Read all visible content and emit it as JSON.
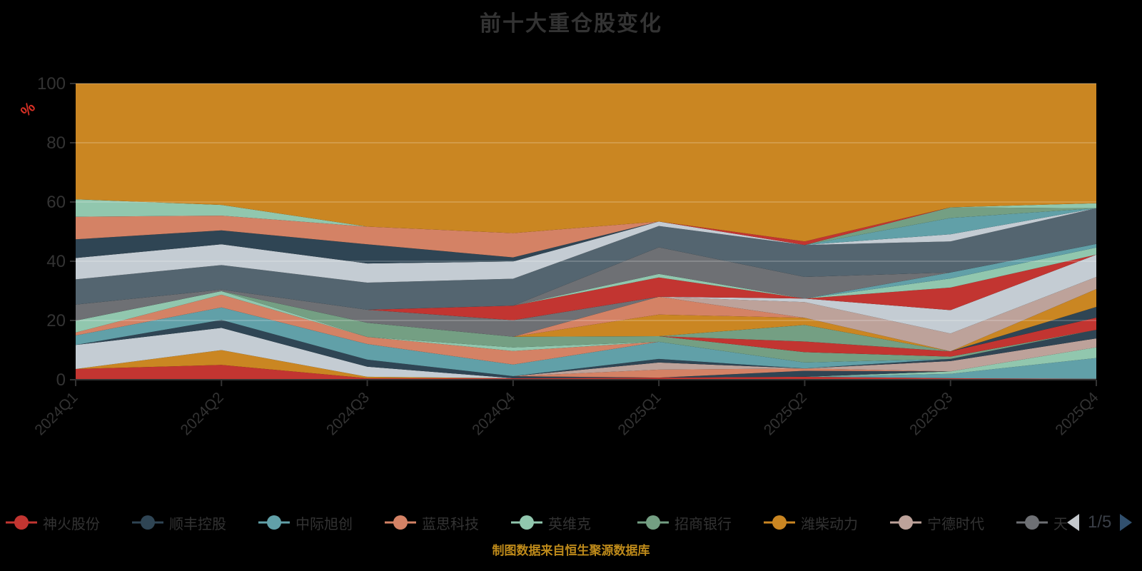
{
  "header": {
    "title": "前十大重仓股变化"
  },
  "footer": {
    "source_note": "制图数据来自恒生聚源数据库"
  },
  "legend": {
    "items": [
      {
        "label": "神火股份",
        "color": "#c23531"
      },
      {
        "label": "顺丰控股",
        "color": "#2f4554"
      },
      {
        "label": "中际旭创",
        "color": "#61a0a8"
      },
      {
        "label": "蓝思科技",
        "color": "#d48265"
      },
      {
        "label": "英维克",
        "color": "#91c7ae"
      },
      {
        "label": "招商银行",
        "color": "#749f83"
      },
      {
        "label": "潍柴动力",
        "color": "#ca8622"
      },
      {
        "label": "宁德时代",
        "color": "#bda29a"
      },
      {
        "label": "天",
        "color": "#6e7074",
        "clipped": true
      }
    ],
    "pager": {
      "label": "1/5",
      "prev_color": "#c4c8cc",
      "next_color": "#31506e"
    }
  },
  "chart_data": {
    "type": "area",
    "stacked": true,
    "normalized_percent": true,
    "title": "前十大重仓股变化",
    "x_categories": [
      "2024Q1",
      "2024Q2",
      "2024Q3",
      "2024Q4",
      "2025Q1",
      "2025Q2",
      "2025Q3",
      "2025Q4"
    ],
    "ylabel": "%",
    "ylabel_color": "#d93025",
    "ylim": [
      0,
      100
    ],
    "y_ticks": [
      0,
      20,
      40,
      60,
      80,
      100
    ],
    "grid": true,
    "gridline_color": "rgba(255,255,255,0.35)",
    "axis_color": "#333333",
    "tick_label_color": "#333333",
    "legend_position": "bottom",
    "palette": [
      "#c23531",
      "#2f4554",
      "#61a0a8",
      "#d48265",
      "#91c7ae",
      "#749f83",
      "#ca8622",
      "#bda29a",
      "#6e7074",
      "#546570",
      "#c4ccd3"
    ],
    "note": "45 holdings cycle through the 11-color palette; legend shows page 1/5. Values are % of portfolio, stacked bottom-to-top, estimated from pixels.",
    "series": [
      {
        "name": "神火股份",
        "color": "#c23531",
        "values": [
          3.6,
          5.0,
          0.5,
          0.5,
          0.7,
          1.0,
          0.5,
          0.3
        ]
      },
      {
        "name": "",
        "color": "#ca8622",
        "values": [
          0,
          5.0,
          0.5,
          0,
          0,
          0,
          0,
          0
        ]
      },
      {
        "name": "",
        "color": "#61a0a8",
        "values": [
          0,
          0,
          0,
          0,
          0,
          0,
          1.5,
          7.0
        ]
      },
      {
        "name": "",
        "color": "#91c7ae",
        "values": [
          0,
          0,
          0,
          0,
          0,
          0,
          0.8,
          3.6
        ]
      },
      {
        "name": "",
        "color": "#c4ccd3",
        "values": [
          8.1,
          7.5,
          3.4,
          0,
          0,
          0,
          0,
          0
        ]
      },
      {
        "name": "",
        "color": "#2f4554",
        "values": [
          0,
          2.7,
          2.4,
          0.7,
          0,
          2.0,
          0,
          0
        ]
      },
      {
        "name": "",
        "color": "#d48265",
        "values": [
          0,
          0,
          0,
          0,
          2.7,
          0.8,
          0,
          0
        ]
      },
      {
        "name": "",
        "color": "#bda29a",
        "values": [
          0,
          0,
          0,
          0,
          2.4,
          0,
          3.5,
          3.0
        ]
      },
      {
        "name": "",
        "color": "#2f4554",
        "values": [
          0,
          0,
          0,
          0,
          1.2,
          0,
          0.7,
          2.9
        ]
      },
      {
        "name": "",
        "color": "#61a0a8",
        "values": [
          3.2,
          4.2,
          5.3,
          3.9,
          5.8,
          2.0,
          0,
          0
        ]
      },
      {
        "name": "",
        "color": "#d48265",
        "values": [
          1.0,
          4.3,
          2.4,
          4.6,
          0,
          0,
          0,
          0
        ]
      },
      {
        "name": "",
        "color": "#91c7ae",
        "values": [
          4.0,
          1.2,
          0,
          1.2,
          0,
          0,
          0,
          0
        ]
      },
      {
        "name": "",
        "color": "#749f83",
        "values": [
          0,
          0,
          4.8,
          3.6,
          1.9,
          3.5,
          0.8,
          0
        ]
      },
      {
        "name": "",
        "color": "#c23531",
        "values": [
          0,
          0,
          0,
          0,
          0,
          3.6,
          1.8,
          4.1
        ]
      },
      {
        "name": "",
        "color": "#2f4554",
        "values": [
          0,
          0,
          0,
          0,
          0,
          0,
          0,
          3.6
        ]
      },
      {
        "name": "",
        "color": "#749f83",
        "values": [
          0,
          0,
          0,
          0,
          0,
          5.6,
          0,
          0
        ]
      },
      {
        "name": "",
        "color": "#ca8622",
        "values": [
          0,
          0,
          0,
          0,
          7.3,
          2.4,
          0,
          6.0
        ]
      },
      {
        "name": "",
        "color": "#d48265",
        "values": [
          0,
          0,
          0,
          0,
          6.0,
          0,
          0,
          0
        ]
      },
      {
        "name": "",
        "color": "#bda29a",
        "values": [
          0,
          0,
          0,
          0,
          0,
          5.3,
          6.0,
          4.1
        ]
      },
      {
        "name": "",
        "color": "#6e7074",
        "values": [
          5.4,
          0.5,
          4.4,
          5.6,
          0,
          0,
          0,
          0
        ]
      },
      {
        "name": "",
        "color": "#c4ccd3",
        "values": [
          0,
          0,
          0,
          0,
          0,
          1.2,
          7.9,
          7.5
        ]
      },
      {
        "name": "",
        "color": "#c23531",
        "values": [
          0,
          0,
          0,
          4.9,
          6.5,
          0,
          7.6,
          0
        ]
      },
      {
        "name": "",
        "color": "#91c7ae",
        "values": [
          0,
          0,
          0,
          0,
          1.2,
          0,
          3.1,
          2.4
        ]
      },
      {
        "name": "",
        "color": "#61a0a8",
        "values": [
          0,
          0,
          0,
          0,
          0,
          0,
          2.0,
          1.2
        ]
      },
      {
        "name": "",
        "color": "#6e7074",
        "values": [
          0,
          0,
          0,
          0,
          9.0,
          7.3,
          0,
          0
        ]
      },
      {
        "name": "",
        "color": "#546570",
        "values": [
          8.5,
          8.3,
          9.2,
          9.1,
          7.2,
          10.8,
          10.5,
          12.0
        ]
      },
      {
        "name": "",
        "color": "#c4ccd3",
        "values": [
          7.2,
          7.0,
          6.5,
          5.8,
          1.5,
          0,
          2.4,
          0
        ]
      },
      {
        "name": "",
        "color": "#2f4554",
        "values": [
          6.3,
          4.7,
          6.5,
          1.4,
          0,
          0,
          0,
          0
        ]
      },
      {
        "name": "",
        "color": "#61a0a8",
        "values": [
          0,
          0,
          0,
          0,
          0,
          0,
          5.5,
          0
        ]
      },
      {
        "name": "",
        "color": "#749f83",
        "values": [
          0,
          0,
          0,
          0,
          0,
          0,
          3.6,
          0
        ]
      },
      {
        "name": "",
        "color": "#c23531",
        "values": [
          0,
          0,
          0,
          0,
          0,
          1.2,
          0,
          0
        ]
      },
      {
        "name": "",
        "color": "#d48265",
        "values": [
          7.6,
          5.0,
          6.0,
          8.2,
          0,
          0,
          0,
          0
        ]
      },
      {
        "name": "",
        "color": "#91c7ae",
        "values": [
          5.9,
          3.6,
          0,
          0,
          0,
          0,
          0,
          1.7
        ]
      },
      {
        "name": "",
        "color": "#ca8622",
        "values": [
          39,
          41,
          48.5,
          50.5,
          46.6,
          53.3,
          41.8,
          40.3
        ]
      }
    ]
  }
}
